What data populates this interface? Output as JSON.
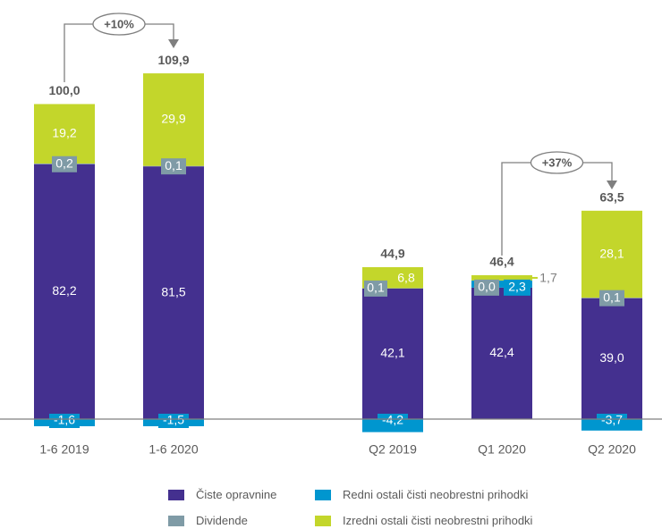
{
  "chart_data": {
    "type": "bar",
    "stacked": true,
    "categories": [
      "1-6 2019",
      "1-6 2020",
      "Q2 2019",
      "Q1 2020",
      "Q2 2020"
    ],
    "series": [
      {
        "name": "Čiste opravnine",
        "color": "#44308f",
        "values": [
          82.2,
          81.5,
          42.1,
          42.4,
          39.0
        ],
        "labels": [
          "82,2",
          "81,5",
          "42,1",
          "42,4",
          "39,0"
        ]
      },
      {
        "name": "Dividende",
        "color": "#7f9ba6",
        "values": [
          0.2,
          0.1,
          0.1,
          0.0,
          0.1
        ],
        "labels": [
          "0,2",
          "0,1",
          "0,1",
          "0,0",
          "0,1"
        ]
      },
      {
        "name": "Redni ostali čisti neobrestni prihodki",
        "color": "#0096cf",
        "values": [
          -1.6,
          -1.5,
          -4.2,
          2.3,
          -3.7
        ],
        "labels": [
          "-1,6",
          "-1,5",
          "-4,2",
          "2,3",
          "-3,7"
        ]
      },
      {
        "name": "Izredni ostali čisti neobrestni prihodki",
        "color": "#c3d62b",
        "values": [
          19.2,
          29.9,
          6.8,
          1.7,
          28.1
        ],
        "labels": [
          "19,2",
          "29,9",
          "6,8",
          "1,7",
          "28,1"
        ]
      }
    ],
    "totals": [
      100.0,
      109.9,
      44.9,
      46.4,
      63.5
    ],
    "total_labels": [
      "100,0",
      "109,9",
      "44,9",
      "46,4",
      "63,5"
    ],
    "annotations": [
      {
        "from": "1-6 2019",
        "to": "1-6 2020",
        "text": "+10%"
      },
      {
        "from": "Q1 2020",
        "to": "Q2 2020",
        "text": "+37%"
      }
    ],
    "legend_position": "bottom"
  },
  "legend": {
    "items": [
      {
        "label": "Čiste opravnine",
        "color": "#44308f"
      },
      {
        "label": "Redni ostali čisti neobrestni prihodki",
        "color": "#0096cf"
      },
      {
        "label": "Dividende",
        "color": "#7f9ba6"
      },
      {
        "label": "Izredni ostali čisti neobrestni prihodki",
        "color": "#c3d62b"
      }
    ]
  }
}
